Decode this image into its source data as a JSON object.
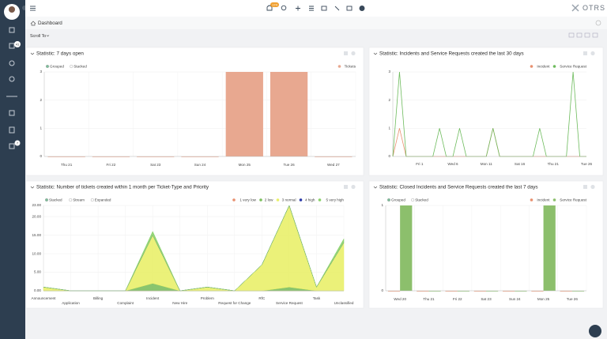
{
  "header": {
    "notification_count": "174",
    "logo": "OTRS"
  },
  "sidebar": {
    "badges": [
      "41",
      "7"
    ]
  },
  "breadcrumb": "Dashboard",
  "scroll_to": "Scroll To",
  "widgets": [
    {
      "title": "Statistic: 7 days open",
      "chart": {
        "type": "bar",
        "controls": [
          "Grouped",
          "Stacked"
        ],
        "categories": [
          "Thu 21",
          "Fri 22",
          "Sat 23",
          "Sun 24",
          "Mon 25",
          "Tue 26",
          "Wed 27"
        ],
        "series": [
          {
            "name": "Tickets",
            "color": "#e8a890",
            "values": [
              0,
              0,
              0,
              0,
              3,
              3,
              0
            ]
          }
        ],
        "ylim": [
          0,
          3
        ],
        "yticks": [
          0,
          1,
          2,
          3
        ]
      }
    },
    {
      "title": "Statistic: Incidents and Service Requests created the last 30 days",
      "chart": {
        "type": "line",
        "controls": [],
        "categories": [
          null,
          null,
          null,
          null,
          "Fri 1",
          null,
          null,
          null,
          null,
          "Wed 6",
          null,
          null,
          null,
          null,
          "Mon 11",
          null,
          null,
          null,
          null,
          "Sat 16",
          null,
          null,
          null,
          null,
          "Thu 21",
          null,
          null,
          null,
          null,
          "Tue 26"
        ],
        "series": [
          {
            "name": "Incident",
            "color": "#e8906f",
            "values": [
              0,
              1,
              0,
              0,
              0,
              0,
              0,
              0,
              0,
              0,
              0,
              0,
              0,
              0,
              0,
              1,
              0,
              0,
              0,
              0,
              0,
              0,
              0,
              0,
              0,
              0,
              0,
              0,
              0,
              0
            ]
          },
          {
            "name": "Service Request",
            "color": "#6dbb5c",
            "values": [
              0,
              3,
              0,
              0,
              0,
              0,
              0,
              1,
              0,
              0,
              1,
              0,
              0,
              0,
              0,
              1,
              0,
              0,
              0,
              0,
              0,
              0,
              1,
              0,
              0,
              0,
              0,
              3,
              0,
              0
            ]
          }
        ],
        "ylim": [
          0,
          3
        ],
        "yticks": [
          0,
          1,
          2,
          3
        ]
      }
    },
    {
      "title": "Statistic: Number of tickets created within 1 month per Ticket-Type and Priority",
      "chart": {
        "type": "area",
        "controls": [
          "Stacked",
          "Stream",
          "Expanded"
        ],
        "categories": [
          "Announcement",
          "Application",
          "Billing",
          "Complaint",
          "Incident",
          "New Hire",
          "Problem",
          "Request for Change",
          "RfC",
          "Service Request",
          "Task",
          "Unclassified"
        ],
        "series": [
          {
            "name": "1 very low",
            "color": "#e8906f",
            "values": [
              0,
              0,
              0,
              0,
              0,
              0,
              0,
              0,
              0,
              0,
              0,
              0
            ]
          },
          {
            "name": "2 low",
            "color": "#7cbf5e",
            "values": [
              0,
              0,
              0,
              0,
              2,
              0,
              0,
              0,
              0,
              1,
              0,
              0
            ]
          },
          {
            "name": "3 normal",
            "color": "#e9f06a",
            "values": [
              1,
              0,
              0,
              0,
              13,
              0,
              1,
              0,
              7,
              22,
              1,
              13
            ]
          },
          {
            "name": "4 high",
            "color": "#2b3aa8",
            "values": [
              0,
              0,
              0,
              0,
              0,
              0,
              0,
              0,
              0,
              0,
              0,
              0
            ]
          },
          {
            "name": "5 very high",
            "color": "#8ad16a",
            "values": [
              0,
              0,
              0,
              0,
              1,
              0,
              0,
              0,
              0,
              0,
              0,
              1
            ]
          }
        ],
        "ylim": [
          0,
          23
        ],
        "yticks": [
          {
            "value": 0,
            "label": "0.00"
          },
          {
            "value": 5,
            "label": "5.00"
          },
          {
            "value": 10,
            "label": "10.00"
          },
          {
            "value": 15,
            "label": "15.00"
          },
          {
            "value": 20,
            "label": "20.00"
          },
          {
            "value": 23,
            "label": "23.00"
          }
        ]
      }
    },
    {
      "title": "Statistic: Closed Incidents and Service Requests created the last 7 days",
      "chart": {
        "type": "bar",
        "controls": [
          "Grouped",
          "Stacked"
        ],
        "categories": [
          "Wed 20",
          "Thu 21",
          "Fri 22",
          "Sat 23",
          "Sun 24",
          "Mon 25",
          "Tue 26"
        ],
        "series": [
          {
            "name": "Incident",
            "color": "#e8906f",
            "values": [
              0,
              0,
              0,
              0,
              0,
              0,
              0
            ]
          },
          {
            "name": "Service Request",
            "color": "#8cbf6c",
            "values": [
              1,
              0,
              0,
              0,
              0,
              1,
              0
            ]
          }
        ],
        "ylim": [
          0,
          1
        ],
        "yticks": [
          0,
          1
        ]
      }
    }
  ]
}
